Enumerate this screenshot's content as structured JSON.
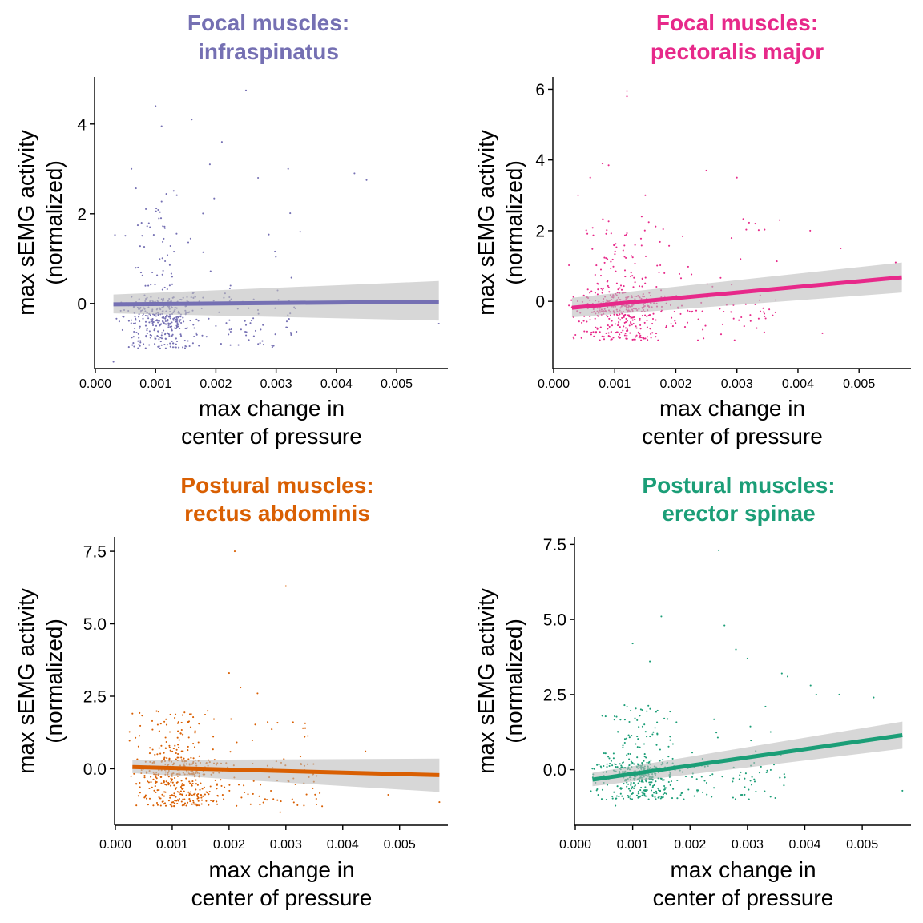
{
  "chart_data": [
    {
      "type": "scatter",
      "title": [
        "Focal muscles:",
        "infraspinatus"
      ],
      "color": "#7570b3",
      "xlabel": [
        "max change in",
        "center of pressure"
      ],
      "ylabel": [
        "max sEMG activity",
        "(normalized)"
      ],
      "xlim": [
        0.0,
        0.00585
      ],
      "ylim": [
        -1.45,
        5.05
      ],
      "xticks": [
        0.0,
        0.001,
        0.002,
        0.003,
        0.004,
        0.005
      ],
      "xtick_labels": [
        "0.000",
        "0.001",
        "0.002",
        "0.003",
        "0.004",
        "0.005"
      ],
      "yticks": [
        0,
        2,
        4
      ],
      "ytick_labels": [
        "0",
        "2",
        "4"
      ],
      "trend": {
        "x": [
          0.0003,
          0.0057
        ],
        "y": [
          -0.02,
          0.04
        ],
        "ci_start": [
          -0.22,
          0.2
        ],
        "ci_end": [
          -0.38,
          0.5
        ]
      },
      "points": {
        "seed": 11,
        "n": 480,
        "x_mode": 0.0011,
        "x_spread": 0.0007,
        "base": -0.4,
        "low": -1.0,
        "high_frac": 0.3,
        "high_max": 2.6,
        "outliers": [
          [
            0.001,
            4.4
          ],
          [
            0.0025,
            4.75
          ],
          [
            0.0016,
            4.1
          ],
          [
            0.0011,
            3.95
          ],
          [
            0.0019,
            3.1
          ],
          [
            0.0032,
            3.0
          ],
          [
            0.0043,
            2.9
          ],
          [
            0.0021,
            3.6
          ],
          [
            0.0006,
            3.0
          ],
          [
            0.0045,
            2.75
          ],
          [
            0.0027,
            2.8
          ],
          [
            0.0034,
            1.6
          ],
          [
            0.0057,
            -0.45
          ],
          [
            0.0003,
            -1.3
          ]
        ]
      }
    },
    {
      "type": "scatter",
      "title": [
        "Focal muscles:",
        "pectoralis major"
      ],
      "color": "#e7298a",
      "xlabel": [
        "max change in",
        "center of pressure"
      ],
      "ylabel": [
        "max sEMG activity",
        "(normalized)"
      ],
      "xlim": [
        0.0,
        0.00585
      ],
      "ylim": [
        -1.9,
        6.35
      ],
      "xticks": [
        0.0,
        0.001,
        0.002,
        0.003,
        0.004,
        0.005
      ],
      "xtick_labels": [
        "0.000",
        "0.001",
        "0.002",
        "0.003",
        "0.004",
        "0.005"
      ],
      "yticks": [
        0,
        2,
        4,
        6
      ],
      "ytick_labels": [
        "0",
        "2",
        "4",
        "6"
      ],
      "trend": {
        "x": [
          0.0003,
          0.0057
        ],
        "y": [
          -0.18,
          0.68
        ],
        "ci_start": [
          -0.45,
          0.1
        ],
        "ci_end": [
          0.25,
          1.1
        ]
      },
      "points": {
        "seed": 23,
        "n": 520,
        "x_mode": 0.0011,
        "x_spread": 0.0008,
        "base": -0.3,
        "low": -1.1,
        "high_frac": 0.35,
        "high_max": 2.4,
        "outliers": [
          [
            0.0012,
            5.95
          ],
          [
            0.0012,
            5.8
          ],
          [
            0.0008,
            3.9
          ],
          [
            0.0009,
            3.85
          ],
          [
            0.0006,
            3.5
          ],
          [
            0.0025,
            3.7
          ],
          [
            0.003,
            3.5
          ],
          [
            0.0004,
            3.0
          ],
          [
            0.0015,
            3.0
          ],
          [
            0.0033,
            2.2
          ],
          [
            0.0037,
            2.3
          ],
          [
            0.0042,
            2.0
          ],
          [
            0.0047,
            1.5
          ],
          [
            0.0056,
            1.1
          ],
          [
            0.0044,
            -0.9
          ]
        ]
      }
    },
    {
      "type": "scatter",
      "title": [
        "Postural muscles:",
        "rectus abdominis"
      ],
      "color": "#d95f02",
      "xlabel": [
        "max change in",
        "center of pressure"
      ],
      "ylabel": [
        "max sEMG activity",
        "(normalized)"
      ],
      "xlim": [
        0.0,
        0.00585
      ],
      "ylim": [
        -1.95,
        8.0
      ],
      "xticks": [
        0.0,
        0.001,
        0.002,
        0.003,
        0.004,
        0.005
      ],
      "xtick_labels": [
        "0.000",
        "0.001",
        "0.002",
        "0.003",
        "0.004",
        "0.005"
      ],
      "yticks": [
        0.0,
        2.5,
        5.0,
        7.5
      ],
      "ytick_labels": [
        "0.0",
        "2.5",
        "5.0",
        "7.5"
      ],
      "trend": {
        "x": [
          0.0003,
          0.0057
        ],
        "y": [
          0.06,
          -0.22
        ],
        "ci_start": [
          -0.15,
          0.3
        ],
        "ci_end": [
          -0.8,
          0.35
        ]
      },
      "points": {
        "seed": 37,
        "n": 520,
        "x_mode": 0.0011,
        "x_spread": 0.0008,
        "base": -0.2,
        "low": -1.3,
        "high_frac": 0.35,
        "high_max": 2.0,
        "outliers": [
          [
            0.0021,
            7.5
          ],
          [
            0.003,
            6.3
          ],
          [
            0.002,
            3.3
          ],
          [
            0.0022,
            2.8
          ],
          [
            0.0025,
            2.6
          ],
          [
            0.0003,
            1.9
          ],
          [
            0.0033,
            1.4
          ],
          [
            0.0044,
            0.6
          ],
          [
            0.0057,
            -1.15
          ],
          [
            0.0048,
            -0.9
          ],
          [
            0.0029,
            -1.5
          ]
        ]
      }
    },
    {
      "type": "scatter",
      "title": [
        "Postural muscles:",
        "erector spinae"
      ],
      "color": "#1b9e77",
      "xlabel": [
        "max change in",
        "center of pressure"
      ],
      "ylabel": [
        "max sEMG activity",
        "(normalized)"
      ],
      "xlim": [
        0.0,
        0.00585
      ],
      "ylim": [
        -1.85,
        7.75
      ],
      "xticks": [
        0.0,
        0.001,
        0.002,
        0.003,
        0.004,
        0.005
      ],
      "xtick_labels": [
        "0.000",
        "0.001",
        "0.002",
        "0.003",
        "0.004",
        "0.005"
      ],
      "yticks": [
        0.0,
        2.5,
        5.0,
        7.5
      ],
      "ytick_labels": [
        "0.0",
        "2.5",
        "5.0",
        "7.5"
      ],
      "trend": {
        "x": [
          0.0003,
          0.0057
        ],
        "y": [
          -0.33,
          1.15
        ],
        "ci_start": [
          -0.55,
          -0.1
        ],
        "ci_end": [
          0.7,
          1.6
        ]
      },
      "points": {
        "seed": 53,
        "n": 520,
        "x_mode": 0.0011,
        "x_spread": 0.0008,
        "base": -0.3,
        "low": -1.0,
        "high_frac": 0.35,
        "high_max": 2.2,
        "outliers": [
          [
            0.0025,
            7.3
          ],
          [
            0.0015,
            5.1
          ],
          [
            0.0026,
            4.8
          ],
          [
            0.001,
            4.2
          ],
          [
            0.0028,
            4.0
          ],
          [
            0.003,
            3.7
          ],
          [
            0.0013,
            3.6
          ],
          [
            0.0036,
            3.2
          ],
          [
            0.0037,
            3.1
          ],
          [
            0.0042,
            2.5
          ],
          [
            0.0041,
            2.8
          ],
          [
            0.0046,
            2.5
          ],
          [
            0.0052,
            2.4
          ],
          [
            0.0057,
            -0.7
          ],
          [
            0.0007,
            -1.2
          ]
        ]
      }
    }
  ]
}
